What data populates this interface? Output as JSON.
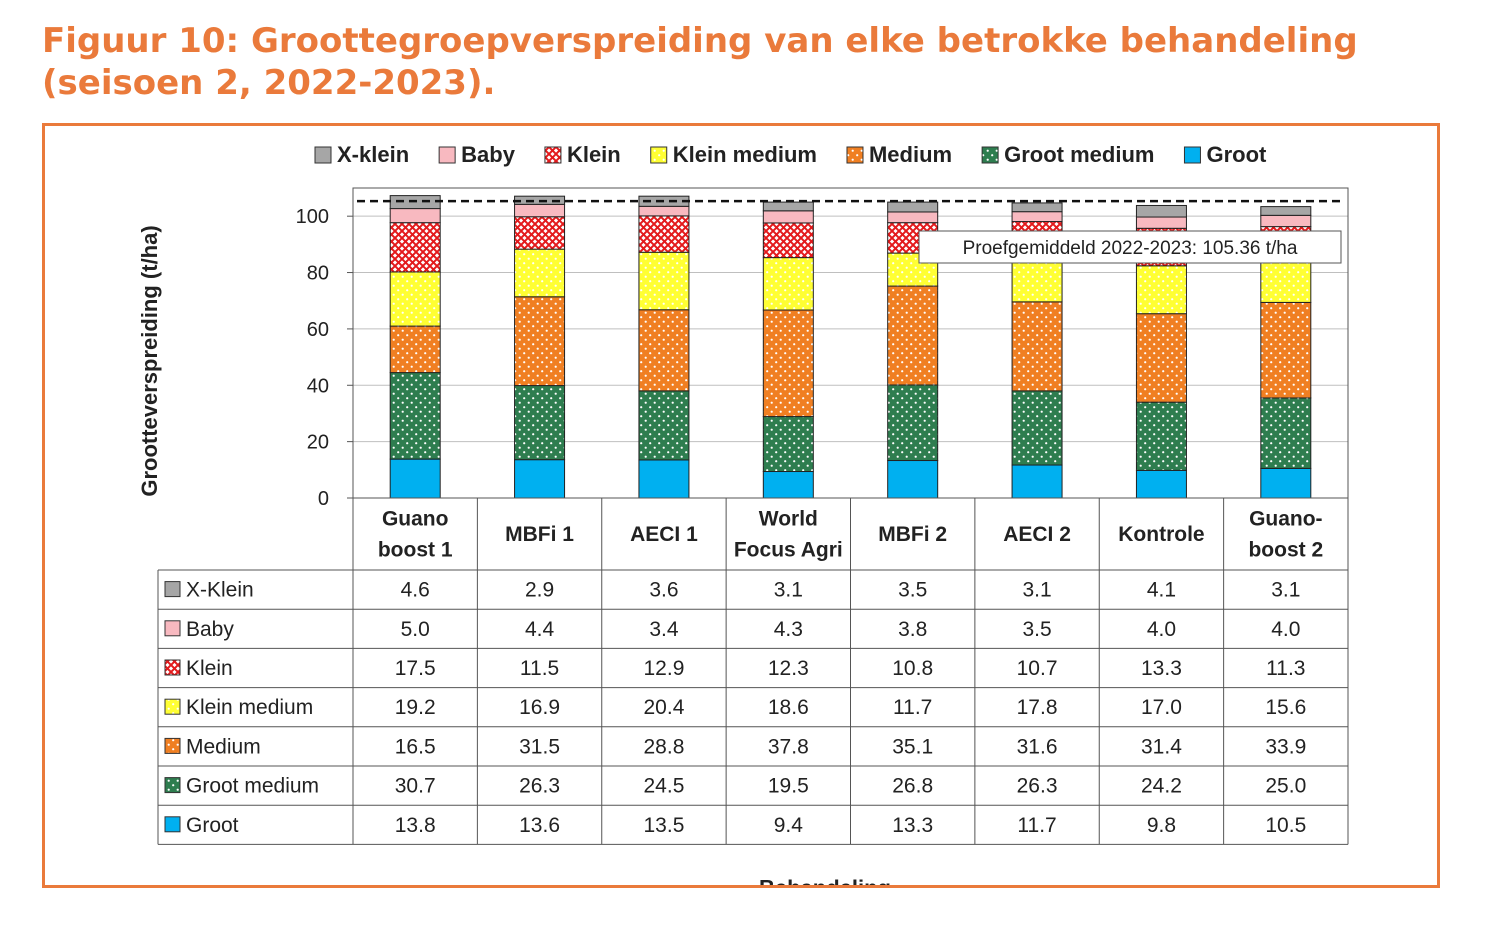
{
  "figure_title_line1": "Figuur 10: Groottegroepverspreiding van elke betrokke behandeling",
  "figure_title_line2": "(seisoen 2, 2022-2023).",
  "chart_data": {
    "type": "bar",
    "stacked": true,
    "title": "",
    "xlabel": "Behandeling",
    "ylabel": "Grootteverspreiding (t/ha)",
    "ylim": [
      0,
      110
    ],
    "yticks": [
      0,
      20,
      40,
      60,
      80,
      100
    ],
    "grid": true,
    "legend_position": "top",
    "categories": [
      [
        "Guano",
        "boost 1"
      ],
      [
        "MBFi 1"
      ],
      [
        "AECI 1"
      ],
      [
        "World",
        "Focus Agri"
      ],
      [
        "MBFi 2"
      ],
      [
        "AECI 2"
      ],
      [
        "Kontrole"
      ],
      [
        "Guano-",
        "boost 2"
      ]
    ],
    "series": [
      {
        "name": "Groot",
        "table_label": "Groot",
        "color": "#00b0f0",
        "pattern": "solid",
        "values": [
          13.8,
          13.6,
          13.5,
          9.4,
          13.3,
          11.7,
          9.8,
          10.5
        ]
      },
      {
        "name": "Groot medium",
        "table_label": "Groot medium",
        "color": "#2e7d4f",
        "pattern": "dots-white",
        "values": [
          30.7,
          26.3,
          24.5,
          19.5,
          26.8,
          26.3,
          24.2,
          25.0
        ]
      },
      {
        "name": "Medium",
        "table_label": "Medium",
        "color": "#f07f22",
        "pattern": "dots-white",
        "values": [
          16.5,
          31.5,
          28.8,
          37.8,
          35.1,
          31.6,
          31.4,
          33.9
        ]
      },
      {
        "name": "Klein medium",
        "table_label": "Klein medium",
        "color": "#ffff33",
        "pattern": "dots-white",
        "values": [
          19.2,
          16.9,
          20.4,
          18.6,
          11.7,
          17.8,
          17.0,
          15.6
        ]
      },
      {
        "name": "Klein",
        "table_label": "Klein",
        "color": "#e31a1c",
        "pattern": "crosshatch",
        "values": [
          17.5,
          11.5,
          12.9,
          12.3,
          10.8,
          10.7,
          13.3,
          11.3
        ]
      },
      {
        "name": "Baby",
        "table_label": "Baby",
        "color": "#f8b9c0",
        "pattern": "solid",
        "values": [
          5.0,
          4.4,
          3.4,
          4.3,
          3.8,
          3.5,
          4.0,
          4.0
        ]
      },
      {
        "name": "X-klein",
        "table_label": "X-Klein",
        "color": "#a6a6a6",
        "pattern": "solid",
        "values": [
          4.6,
          2.9,
          3.6,
          3.1,
          3.5,
          3.1,
          4.1,
          3.1
        ]
      }
    ],
    "reference_line": {
      "value": 105.36,
      "label": "Proefgemiddeld 2022-2023: 105.36 t/ha",
      "style": "dashed"
    }
  }
}
